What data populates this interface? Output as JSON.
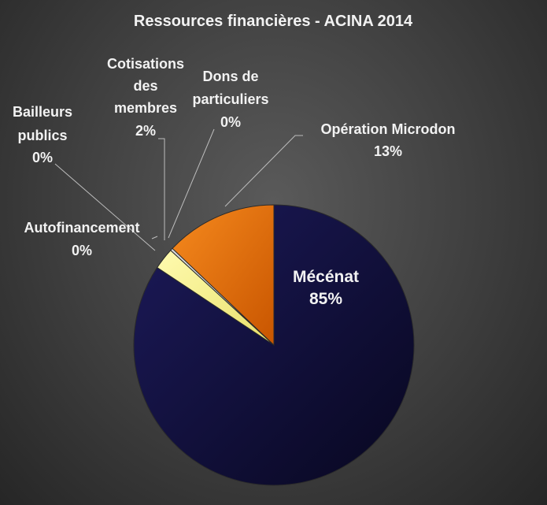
{
  "chart_data": {
    "type": "pie",
    "title": "Ressources financières - ACINA 2014",
    "slices": [
      {
        "label": "Mécénat",
        "value": 85,
        "value_label": "85%",
        "color": "#0f0d3d"
      },
      {
        "label": "Autofinancement",
        "value": 0.0,
        "value_label": "0%",
        "color": "#c9c9c9"
      },
      {
        "label": "Bailleurs publics",
        "value": 0.0,
        "value_label": "0%",
        "color": "#8f8f8f"
      },
      {
        "label": "Cotisations des membres",
        "value": 2.5,
        "value_label": "2%",
        "color": "#f7f28a"
      },
      {
        "label": "Dons de particuliers",
        "value": 0.3,
        "value_label": "0%",
        "color": "#d9d9d9"
      },
      {
        "label": "Opération Microdon",
        "value": 13,
        "value_label": "13%",
        "color": "#e86a0a"
      }
    ],
    "legend": "none",
    "label_position": "outside-with-leader-lines"
  }
}
